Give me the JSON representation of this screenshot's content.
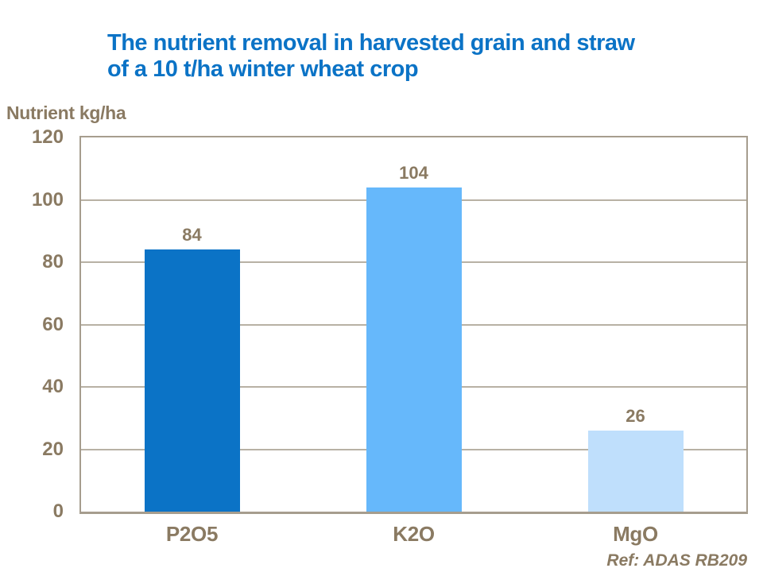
{
  "title_lines": [
    "The nutrient removal in harvested grain and straw",
    "of a 10 t/ha winter wheat crop"
  ],
  "footer": {
    "ref": "Ref: ADAS RB209"
  },
  "colors": {
    "title_blue": "#0b73c6",
    "text_brown": "#8a7a62",
    "axis_border": "#a69d8e",
    "gridline": "#b8b1a4"
  },
  "chart_data": {
    "type": "bar",
    "title": "The nutrient removal in harvested grain and straw of a 10 t/ha winter wheat crop",
    "ylabel": "Nutrient kg/ha",
    "xlabel": "",
    "categories": [
      "P2O5",
      "K2O",
      "MgO"
    ],
    "values": [
      84,
      104,
      26
    ],
    "data_labels": [
      "84",
      "104",
      "26"
    ],
    "bar_colors": [
      "#0b73c6",
      "#66b8fb",
      "#bfdffc"
    ],
    "ylim": [
      0,
      120
    ],
    "yticks": [
      0,
      20,
      40,
      60,
      80,
      100,
      120
    ],
    "grid": "horizontal",
    "legend": "none",
    "annotation": "Ref: ADAS RB209"
  }
}
